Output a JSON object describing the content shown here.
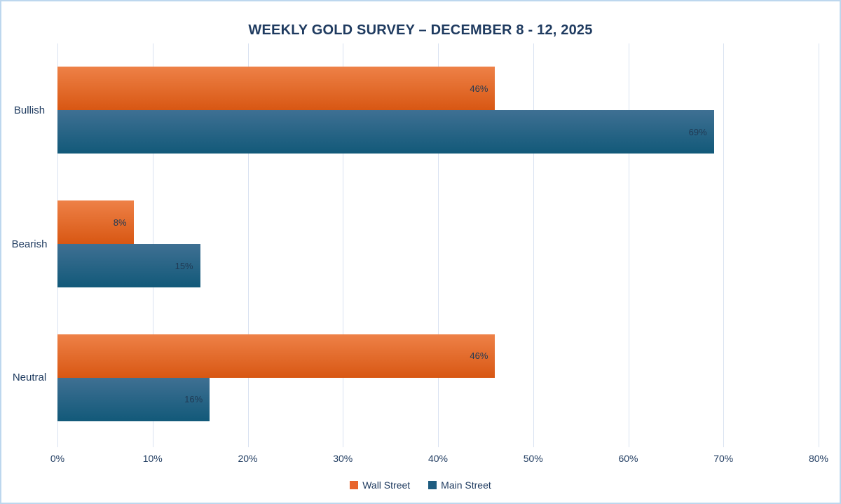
{
  "chart_data": {
    "type": "bar",
    "orientation": "horizontal",
    "title": "WEEKLY GOLD SURVEY – DECEMBER 8 - 12, 2025",
    "categories": [
      "Bullish",
      "Bearish",
      "Neutral"
    ],
    "series": [
      {
        "name": "Wall Street",
        "values": [
          46,
          8,
          46
        ],
        "color": "#E8642C",
        "gradient_top": "#EE8147",
        "gradient_bottom": "#D85713"
      },
      {
        "name": "Main Street",
        "values": [
          69,
          15,
          16
        ],
        "color": "#1E5C80",
        "gradient_top": "#3F7093",
        "gradient_bottom": "#125979"
      }
    ],
    "value_suffix": "%",
    "xlabel": "",
    "ylabel": "",
    "xlim": [
      0,
      80
    ],
    "x_ticks": [
      "0%",
      "10%",
      "20%",
      "30%",
      "40%",
      "50%",
      "60%",
      "70%",
      "80%"
    ],
    "grid": "vertical-on",
    "legend_position": "bottom"
  },
  "colors": {
    "canvas_border": "#BDD7EE",
    "background": "#FFFFFF",
    "text": "#1E3A5F",
    "gridline": "#D9E2F1",
    "bar_label": "#203A54"
  }
}
